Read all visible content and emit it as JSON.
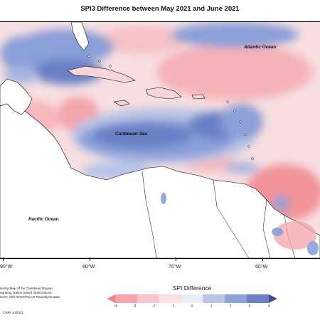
{
  "title": "SPI3 Difference between May 2021 and June 2021",
  "map_labels": {
    "atlantic": "Atlantic Ocean",
    "caribbean": "Caribbean Sea",
    "pacific": "Pacific Ocean"
  },
  "longitude_ticks": [
    "90°W",
    "80°W",
    "70°W",
    "60°W"
  ],
  "legend": {
    "title": "SPI Difference",
    "ticks": [
      "-4",
      "-3",
      "-2",
      "-1",
      "0",
      "1",
      "2",
      "3",
      "4"
    ],
    "colors": [
      "#f2848c",
      "#f4a4aa",
      "#f7c6ca",
      "#fae0e2",
      "#e9eef4",
      "#b8c4e6",
      "#8b9fd8",
      "#6b80c6",
      "#3f4d95"
    ]
  },
  "footnote_lines": [
    "itoring Map of the Caribbean Region.",
    "egrating station based observations,",
    "ICDF, with NCEP/NCAR Reanalysis Data"
  ],
  "copyright": "CIMH Jul2021"
}
